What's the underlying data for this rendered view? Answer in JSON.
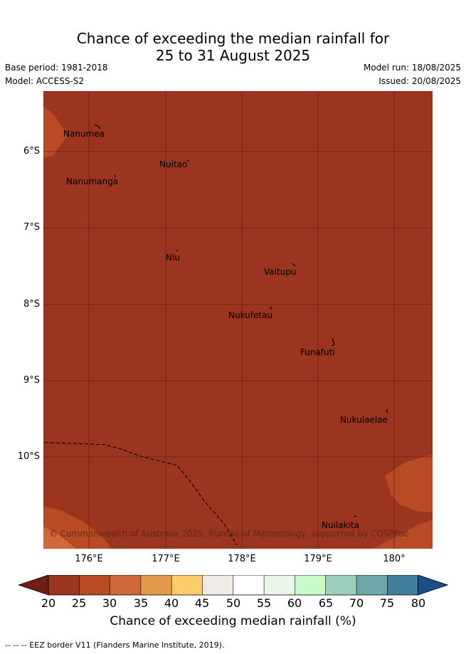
{
  "title": {
    "line1": "Chance of exceeding the median rainfall for",
    "line2": "25 to 31 August 2025"
  },
  "meta": {
    "base_period": "Base period: 1981-2018",
    "model": "Model: ACCESS-S2",
    "model_run": "Model run: 18/08/2025",
    "issued": "Issued: 20/08/2025"
  },
  "map": {
    "lat_labels": [
      "6°S",
      "7°S",
      "8°S",
      "9°S",
      "10°S"
    ],
    "lon_labels": [
      "176°E",
      "177°E",
      "178°E",
      "179°E",
      "180°"
    ],
    "places": [
      {
        "name": "Nanumea"
      },
      {
        "name": "Nuitao"
      },
      {
        "name": "Nanumanga"
      },
      {
        "name": "Niu"
      },
      {
        "name": "Vaitupu"
      },
      {
        "name": "Nukufetau"
      },
      {
        "name": "Funafuti"
      },
      {
        "name": "Nukulaelae"
      },
      {
        "name": "Nuilakita"
      }
    ],
    "copyright": "© Commonwealth of Australia 2025, Bureau of Meteorology, supported by COSPPac",
    "colors": {
      "lt20": "#6e1e12",
      "c20_25": "#9b3520",
      "c25_30": "#b84a26",
      "c30_35": "#d0693a",
      "c35_40": "#e39a4b",
      "c40_45": "#fccc6a",
      "c45_50": "#eeeae6",
      "c50_55": "#ffffff",
      "c55_60": "#ffffff",
      "c60_65": "#eaf5ea",
      "c65_70": "#c8fbc8",
      "c70_75": "#9ccfbb",
      "c75_80": "#6ea7a9",
      "c80_85": "#427f9f",
      "gt80": "#1c4f8a"
    }
  },
  "colorbar": {
    "ticks": [
      "20",
      "25",
      "30",
      "35",
      "40",
      "45",
      "50",
      "55",
      "60",
      "65",
      "70",
      "75",
      "80"
    ],
    "title": "Chance of exceeding median rainfall (%)"
  },
  "footnote": "-- -- -- EEZ border V11 (Flanders Marine Institute, 2019)."
}
